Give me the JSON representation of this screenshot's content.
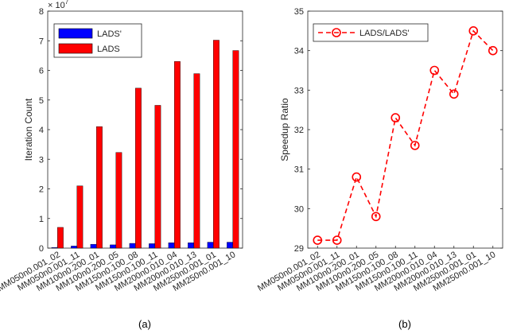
{
  "chart_data": [
    {
      "type": "bar",
      "caption": "(a)",
      "ylabel": "Iteration Count",
      "exponent": "× 10",
      "exponent_power": "7",
      "ylim": [
        0,
        8
      ],
      "yticks": [
        0,
        1,
        2,
        3,
        4,
        5,
        6,
        7,
        8
      ],
      "categories": [
        "MM050n0.001_02",
        "MM050n0.001_11",
        "MM100n0.200_01",
        "MM100n0.200_05",
        "MM150n0.100_08",
        "MM150n0.100_11",
        "MM200n0.010_04",
        "MM200n0.010_13",
        "MM250n0.001_01",
        "MM250n0.001_10"
      ],
      "series": [
        {
          "name": "LADS'",
          "color": "#0000ff",
          "values": [
            0.02,
            0.07,
            0.13,
            0.11,
            0.16,
            0.15,
            0.18,
            0.18,
            0.2,
            0.2
          ]
        },
        {
          "name": "LADS",
          "color": "#ff0000",
          "values": [
            0.7,
            2.1,
            4.1,
            3.23,
            5.4,
            4.82,
            6.3,
            5.89,
            7.02,
            6.67
          ]
        }
      ],
      "legend_position": "top-left",
      "grid": false
    },
    {
      "type": "line",
      "caption": "(b)",
      "ylabel": "Speedup Ratio",
      "ylim": [
        29,
        35
      ],
      "yticks": [
        29,
        30,
        31,
        32,
        33,
        34,
        35
      ],
      "categories": [
        "MM050n0.001_02",
        "MM050n0.001_11",
        "MM100n0.200_01",
        "MM100n0.200_05",
        "MM150n0.100_08",
        "MM150n0.100_11",
        "MM200n0.010_04",
        "MM200n0.010_13",
        "MM250n0.001_01",
        "MM250n0.001_10"
      ],
      "series": [
        {
          "name": "LADS/LADS'",
          "color": "#ff0000",
          "line_style": "dashed",
          "marker": "circle",
          "values": [
            29.2,
            29.2,
            30.8,
            29.8,
            32.3,
            31.6,
            33.5,
            32.9,
            34.5,
            34.0
          ]
        }
      ],
      "legend_position": "top-left",
      "grid": false
    }
  ]
}
